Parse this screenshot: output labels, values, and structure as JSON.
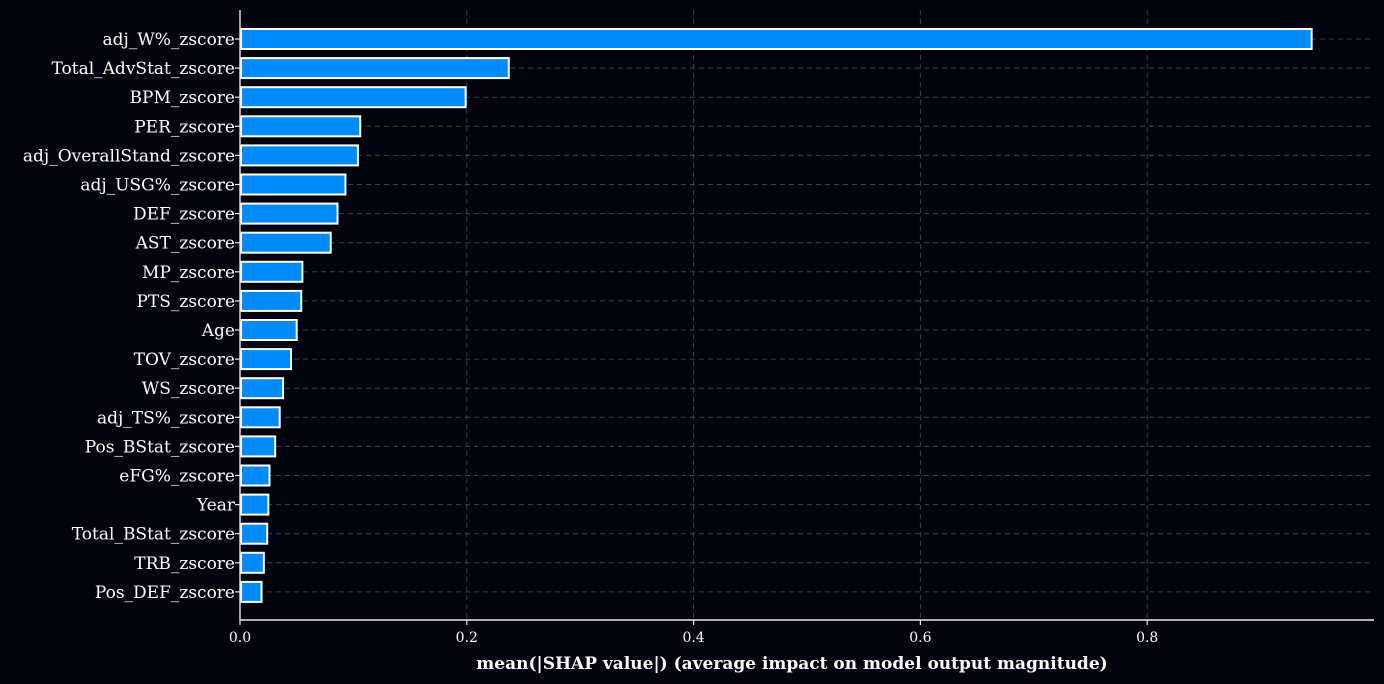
{
  "chart_data": {
    "type": "bar",
    "orientation": "horizontal",
    "xlabel": "mean(|SHAP value|) (average impact on model output magnitude)",
    "ylabel": "",
    "xlim": [
      0,
      1.0
    ],
    "xticks": [
      0.0,
      0.2,
      0.4,
      0.6,
      0.8
    ],
    "xtick_labels": [
      "0.0",
      "0.2",
      "0.4",
      "0.6",
      "0.8"
    ],
    "grid": true,
    "categories": [
      "adj_W%_zscore",
      "Total_AdvStat_zscore",
      "BPM_zscore",
      "PER_zscore",
      "adj_OverallStand_zscore",
      "adj_USG%_zscore",
      "DEF_zscore",
      "AST_zscore",
      "MP_zscore",
      "PTS_zscore",
      "Age",
      "TOV_zscore",
      "WS_zscore",
      "adj_TS%_zscore",
      "Pos_BStat_zscore",
      "eFG%_zscore",
      "Year",
      "Total_BStat_zscore",
      "TRB_zscore",
      "Pos_DEF_zscore"
    ],
    "values": [
      0.945,
      0.237,
      0.199,
      0.106,
      0.104,
      0.093,
      0.086,
      0.08,
      0.055,
      0.054,
      0.05,
      0.045,
      0.038,
      0.035,
      0.031,
      0.026,
      0.025,
      0.024,
      0.021,
      0.019
    ],
    "colors": {
      "bar": "#008bfb",
      "bar_edge": "#ffffff",
      "background": "#03030f",
      "grid": "#3a3f52",
      "text": "#ffffff"
    }
  }
}
